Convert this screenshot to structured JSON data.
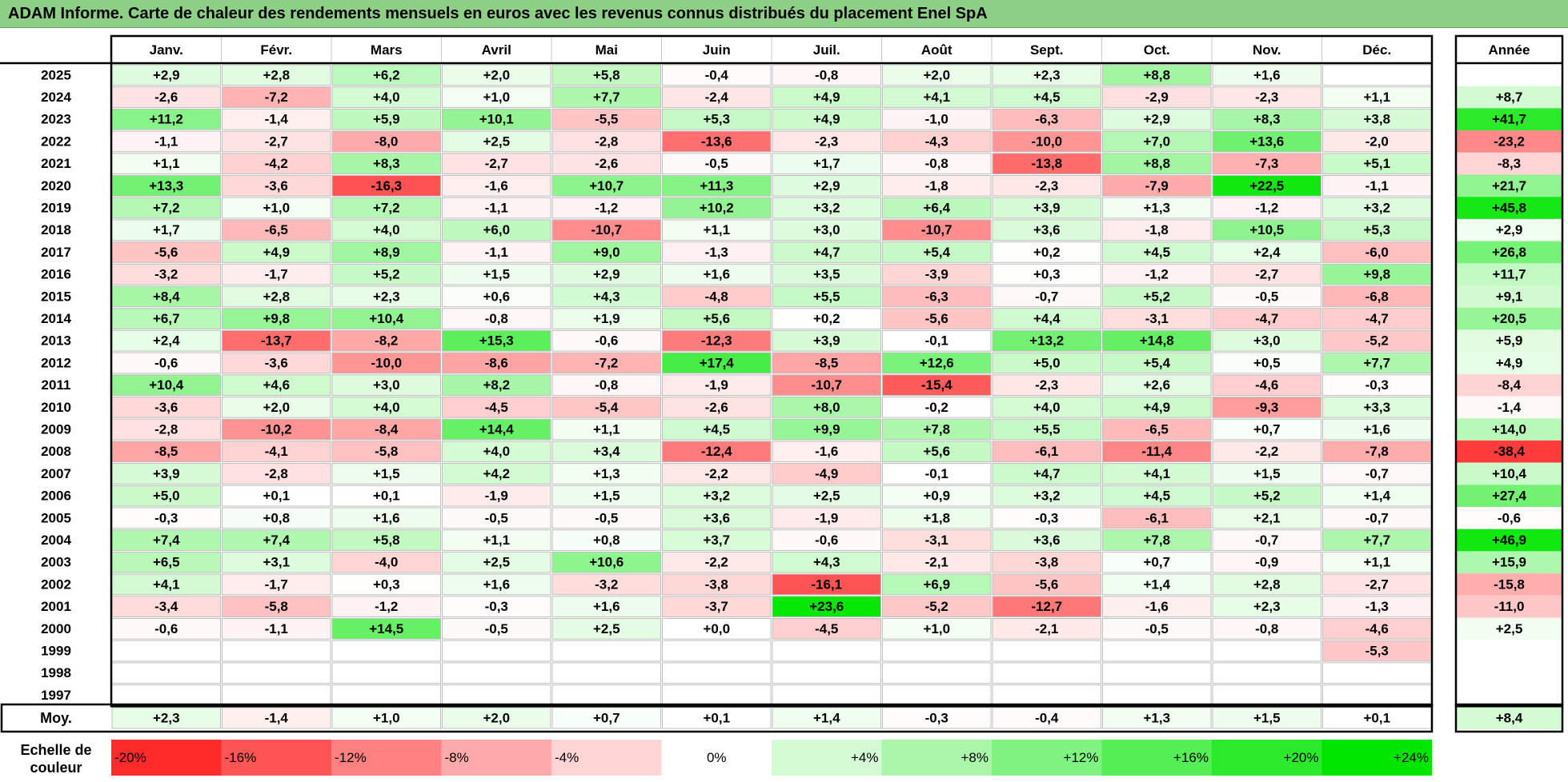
{
  "title": "ADAM Informe. Carte de chaleur des rendements mensuels en euros avec les revenus connus distribués du placement Enel SpA",
  "chart_data": {
    "type": "heatmap",
    "title": "ADAM Informe. Carte de chaleur des rendements mensuels en euros avec les revenus connus distribués du placement Enel SpA",
    "months": [
      "Janv.",
      "Févr.",
      "Mars",
      "Avril",
      "Mai",
      "Juin",
      "Juil.",
      "Août",
      "Sept.",
      "Oct.",
      "Nov.",
      "Déc."
    ],
    "year_header": "Année",
    "avg_label": "Moy.",
    "rows": [
      {
        "year": "2025",
        "values": [
          "+2,9",
          "+2,8",
          "+6,2",
          "+2,0",
          "+5,8",
          "-0,4",
          "-0,8",
          "+2,0",
          "+2,3",
          "+8,8",
          "+1,6",
          ""
        ],
        "annual": ""
      },
      {
        "year": "2024",
        "values": [
          "-2,6",
          "-7,2",
          "+4,0",
          "+1,0",
          "+7,7",
          "-2,4",
          "+4,9",
          "+4,1",
          "+4,5",
          "-2,9",
          "-2,3",
          "+1,1"
        ],
        "annual": "+8,7"
      },
      {
        "year": "2023",
        "values": [
          "+11,2",
          "-1,4",
          "+5,9",
          "+10,1",
          "-5,5",
          "+5,3",
          "+4,9",
          "-1,0",
          "-6,3",
          "+2,9",
          "+8,3",
          "+3,8"
        ],
        "annual": "+41,7"
      },
      {
        "year": "2022",
        "values": [
          "-1,1",
          "-2,7",
          "-8,0",
          "+2,5",
          "-2,8",
          "-13,6",
          "-2,3",
          "-4,3",
          "-10,0",
          "+7,0",
          "+13,6",
          "-2,0"
        ],
        "annual": "-23,2"
      },
      {
        "year": "2021",
        "values": [
          "+1,1",
          "-4,2",
          "+8,3",
          "-2,7",
          "-2,6",
          "-0,5",
          "+1,7",
          "-0,8",
          "-13,8",
          "+8,8",
          "-7,3",
          "+5,1"
        ],
        "annual": "-8,3"
      },
      {
        "year": "2020",
        "values": [
          "+13,3",
          "-3,6",
          "-16,3",
          "-1,6",
          "+10,7",
          "+11,3",
          "+2,9",
          "-1,8",
          "-2,3",
          "-7,9",
          "+22,5",
          "-1,1"
        ],
        "annual": "+21,7"
      },
      {
        "year": "2019",
        "values": [
          "+7,2",
          "+1,0",
          "+7,2",
          "-1,1",
          "-1,2",
          "+10,2",
          "+3,2",
          "+6,4",
          "+3,9",
          "+1,3",
          "-1,2",
          "+3,2"
        ],
        "annual": "+45,8"
      },
      {
        "year": "2018",
        "values": [
          "+1,7",
          "-6,5",
          "+4,0",
          "+6,0",
          "-10,7",
          "+1,1",
          "+3,0",
          "-10,7",
          "+3,6",
          "-1,8",
          "+10,5",
          "+5,3"
        ],
        "annual": "+2,9"
      },
      {
        "year": "2017",
        "values": [
          "-5,6",
          "+4,9",
          "+8,9",
          "-1,1",
          "+9,0",
          "-1,3",
          "+4,7",
          "+5,4",
          "+0,2",
          "+4,5",
          "+2,4",
          "-6,0"
        ],
        "annual": "+26,8"
      },
      {
        "year": "2016",
        "values": [
          "-3,2",
          "-1,7",
          "+5,2",
          "+1,5",
          "+2,9",
          "+1,6",
          "+3,5",
          "-3,9",
          "+0,3",
          "-1,2",
          "-2,7",
          "+9,8"
        ],
        "annual": "+11,7"
      },
      {
        "year": "2015",
        "values": [
          "+8,4",
          "+2,8",
          "+2,3",
          "+0,6",
          "+4,3",
          "-4,8",
          "+5,5",
          "-6,3",
          "-0,7",
          "+5,2",
          "-0,5",
          "-6,8"
        ],
        "annual": "+9,1"
      },
      {
        "year": "2014",
        "values": [
          "+6,7",
          "+9,8",
          "+10,4",
          "-0,8",
          "+1,9",
          "+5,6",
          "+0,2",
          "-5,6",
          "+4,4",
          "-3,1",
          "-4,7",
          "-4,7"
        ],
        "annual": "+20,5"
      },
      {
        "year": "2013",
        "values": [
          "+2,4",
          "-13,7",
          "-8,2",
          "+15,3",
          "-0,6",
          "-12,3",
          "+3,9",
          "-0,1",
          "+13,2",
          "+14,8",
          "+3,0",
          "-5,2"
        ],
        "annual": "+5,9"
      },
      {
        "year": "2012",
        "values": [
          "-0,6",
          "-3,6",
          "-10,0",
          "-8,6",
          "-7,2",
          "+17,4",
          "-8,5",
          "+12,6",
          "+5,0",
          "+5,4",
          "+0,5",
          "+7,7"
        ],
        "annual": "+4,9"
      },
      {
        "year": "2011",
        "values": [
          "+10,4",
          "+4,6",
          "+3,0",
          "+8,2",
          "-0,8",
          "-1,9",
          "-10,7",
          "-15,4",
          "-2,3",
          "+2,6",
          "-4,6",
          "-0,3"
        ],
        "annual": "-8,4"
      },
      {
        "year": "2010",
        "values": [
          "-3,6",
          "+2,0",
          "+4,0",
          "-4,5",
          "-5,4",
          "-2,6",
          "+8,0",
          "-0,2",
          "+4,0",
          "+4,9",
          "-9,3",
          "+3,3"
        ],
        "annual": "-1,4"
      },
      {
        "year": "2009",
        "values": [
          "-2,8",
          "-10,2",
          "-8,4",
          "+14,4",
          "+1,1",
          "+4,5",
          "+9,9",
          "+7,8",
          "+5,5",
          "-6,5",
          "+0,7",
          "+1,6"
        ],
        "annual": "+14,0"
      },
      {
        "year": "2008",
        "values": [
          "-8,5",
          "-4,1",
          "-5,8",
          "+4,0",
          "+3,4",
          "-12,4",
          "-1,6",
          "+5,6",
          "-6,1",
          "-11,4",
          "-2,2",
          "-7,8"
        ],
        "annual": "-38,4"
      },
      {
        "year": "2007",
        "values": [
          "+3,9",
          "-2,8",
          "+1,5",
          "+4,2",
          "+1,3",
          "-2,2",
          "-4,9",
          "-0,1",
          "+4,7",
          "+4,1",
          "+1,5",
          "-0,7"
        ],
        "annual": "+10,4"
      },
      {
        "year": "2006",
        "values": [
          "+5,0",
          "+0,1",
          "+0,1",
          "-1,9",
          "+1,5",
          "+3,2",
          "+2,5",
          "+0,9",
          "+3,2",
          "+4,5",
          "+5,2",
          "+1,4"
        ],
        "annual": "+27,4"
      },
      {
        "year": "2005",
        "values": [
          "-0,3",
          "+0,8",
          "+1,6",
          "-0,5",
          "-0,5",
          "+3,6",
          "-1,9",
          "+1,8",
          "-0,3",
          "-6,1",
          "+2,1",
          "-0,7"
        ],
        "annual": "-0,6"
      },
      {
        "year": "2004",
        "values": [
          "+7,4",
          "+7,4",
          "+5,8",
          "+1,1",
          "+0,8",
          "+3,7",
          "-0,6",
          "-3,1",
          "+3,6",
          "+7,8",
          "-0,7",
          "+7,7"
        ],
        "annual": "+46,9"
      },
      {
        "year": "2003",
        "values": [
          "+6,5",
          "+3,1",
          "-4,0",
          "+2,5",
          "+10,6",
          "-2,2",
          "+4,3",
          "-2,1",
          "-3,8",
          "+0,7",
          "-0,9",
          "+1,1"
        ],
        "annual": "+15,9"
      },
      {
        "year": "2002",
        "values": [
          "+4,1",
          "-1,7",
          "+0,3",
          "+1,6",
          "-3,2",
          "-3,8",
          "-16,1",
          "+6,9",
          "-5,6",
          "+1,4",
          "+2,8",
          "-2,7"
        ],
        "annual": "-15,8"
      },
      {
        "year": "2001",
        "values": [
          "-3,4",
          "-5,8",
          "-1,2",
          "-0,3",
          "+1,6",
          "-3,7",
          "+23,6",
          "-5,2",
          "-12,7",
          "-1,6",
          "+2,3",
          "-1,3"
        ],
        "annual": "-11,0"
      },
      {
        "year": "2000",
        "values": [
          "-0,6",
          "-1,1",
          "+14,5",
          "-0,5",
          "+2,5",
          "+0,0",
          "-4,5",
          "+1,0",
          "-2,1",
          "-0,5",
          "-0,8",
          "-4,6"
        ],
        "annual": "+2,5"
      },
      {
        "year": "1999",
        "values": [
          "",
          "",
          "",
          "",
          "",
          "",
          "",
          "",
          "",
          "",
          "",
          "-5,3"
        ],
        "annual": ""
      },
      {
        "year": "1998",
        "values": [
          "",
          "",
          "",
          "",
          "",
          "",
          "",
          "",
          "",
          "",
          "",
          ""
        ],
        "annual": ""
      },
      {
        "year": "1997",
        "values": [
          "",
          "",
          "",
          "",
          "",
          "",
          "",
          "",
          "",
          "",
          "",
          ""
        ],
        "annual": ""
      }
    ],
    "averages": {
      "values": [
        "+2,3",
        "-1,4",
        "+1,0",
        "+2,0",
        "+0,7",
        "+0,1",
        "+1,4",
        "-0,3",
        "-0,4",
        "+1,3",
        "+1,5",
        "+0,1"
      ],
      "annual": "+8,4"
    },
    "scale_label": "Echelle de couleur",
    "scale": [
      {
        "label": "-20%",
        "value": -20
      },
      {
        "label": "-16%",
        "value": -16
      },
      {
        "label": "-12%",
        "value": -12
      },
      {
        "label": "-8%",
        "value": -8
      },
      {
        "label": "-4%",
        "value": -4
      },
      {
        "label": "0%",
        "value": 0
      },
      {
        "label": "+4%",
        "value": 4
      },
      {
        "label": "+8%",
        "value": 8
      },
      {
        "label": "+12%",
        "value": 12
      },
      {
        "label": "+16%",
        "value": 16
      },
      {
        "label": "+20%",
        "value": 20
      },
      {
        "label": "+24%",
        "value": 24
      }
    ],
    "colors": {
      "negative": "#ff0000",
      "neutral": "#ffffff",
      "positive": "#00e600",
      "title_bg": "#8ccf85"
    }
  }
}
